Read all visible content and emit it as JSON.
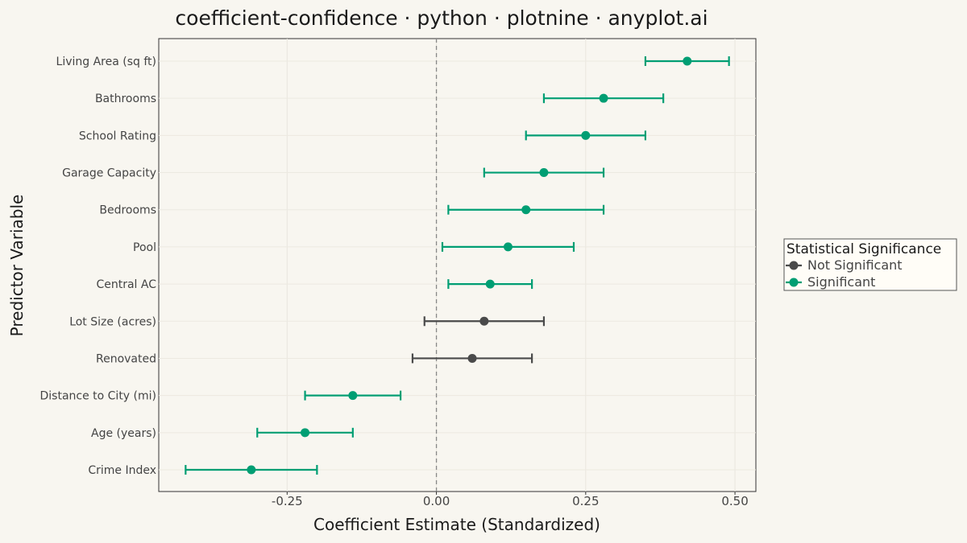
{
  "chart_data": {
    "type": "scatter",
    "title": "coefficient-confidence · python · plotnine · anyplot.ai",
    "xlabel": "Coefficient Estimate (Standardized)",
    "ylabel": "Predictor Variable",
    "xlim": [
      -0.465,
      0.535
    ],
    "xticks": [
      -0.25,
      0.0,
      0.25,
      0.5
    ],
    "xtick_labels": [
      "-0.25",
      "0.00",
      "0.25",
      "0.50"
    ],
    "reference_line": 0.0,
    "grid": true,
    "legend_position": "right",
    "legend": {
      "title": "Statistical Significance",
      "entries": [
        {
          "label": "Not Significant",
          "color": "#4a4a4a"
        },
        {
          "label": "Significant",
          "color": "#009e73"
        }
      ]
    },
    "points": [
      {
        "label": "Living Area (sq ft)",
        "estimate": 0.42,
        "ci_low": 0.35,
        "ci_high": 0.49,
        "significant": true
      },
      {
        "label": "Bathrooms",
        "estimate": 0.28,
        "ci_low": 0.18,
        "ci_high": 0.38,
        "significant": true
      },
      {
        "label": "School Rating",
        "estimate": 0.25,
        "ci_low": 0.15,
        "ci_high": 0.35,
        "significant": true
      },
      {
        "label": "Garage Capacity",
        "estimate": 0.18,
        "ci_low": 0.08,
        "ci_high": 0.28,
        "significant": true
      },
      {
        "label": "Bedrooms",
        "estimate": 0.15,
        "ci_low": 0.02,
        "ci_high": 0.28,
        "significant": true
      },
      {
        "label": "Pool",
        "estimate": 0.12,
        "ci_low": 0.01,
        "ci_high": 0.23,
        "significant": true
      },
      {
        "label": "Central AC",
        "estimate": 0.09,
        "ci_low": 0.02,
        "ci_high": 0.16,
        "significant": true
      },
      {
        "label": "Lot Size (acres)",
        "estimate": 0.08,
        "ci_low": -0.02,
        "ci_high": 0.18,
        "significant": false
      },
      {
        "label": "Renovated",
        "estimate": 0.06,
        "ci_low": -0.04,
        "ci_high": 0.16,
        "significant": false
      },
      {
        "label": "Distance to City (mi)",
        "estimate": -0.14,
        "ci_low": -0.22,
        "ci_high": -0.06,
        "significant": true
      },
      {
        "label": "Age (years)",
        "estimate": -0.22,
        "ci_low": -0.3,
        "ci_high": -0.14,
        "significant": true
      },
      {
        "label": "Crime Index",
        "estimate": -0.31,
        "ci_low": -0.42,
        "ci_high": -0.2,
        "significant": true
      }
    ],
    "colors": {
      "significant": "#009e73",
      "not_significant": "#4a4a4a"
    }
  }
}
